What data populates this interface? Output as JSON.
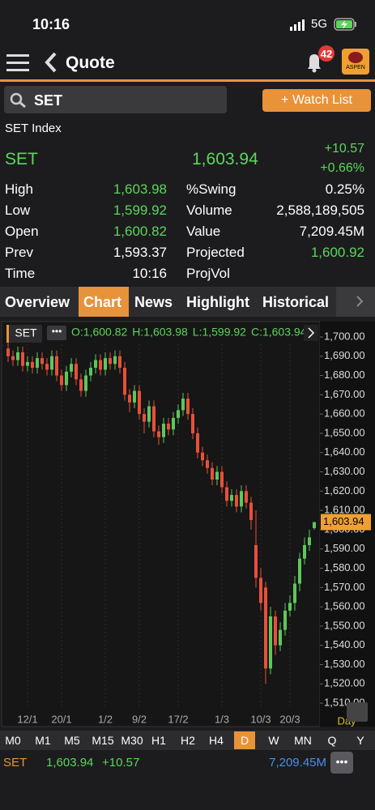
{
  "status_bar": {
    "time": "10:16",
    "network": "5G"
  },
  "nav": {
    "title": "Quote",
    "badge": "42",
    "logo": "ASPEN"
  },
  "search": {
    "query": "SET",
    "button": "+ Watch List"
  },
  "quote": {
    "name": "SET Index",
    "symbol": "SET",
    "last": "1,603.94",
    "change": "+10.57",
    "change_pct": "+0.66%",
    "rows": [
      [
        "High",
        "1,603.98",
        "%Swing",
        "0.25%"
      ],
      [
        "Low",
        "1,599.92",
        "Volume",
        "2,588,189,505"
      ],
      [
        "Open",
        "1,600.82",
        "Value",
        "7,209.45M"
      ],
      [
        "Prev",
        "1,593.37",
        "Projected",
        "1,600.92"
      ],
      [
        "Time",
        "10:16",
        "ProjVol"
      ]
    ]
  },
  "tabs": [
    "Overview",
    "Chart",
    "News",
    "Highlight",
    "Historical"
  ],
  "chart_data": {
    "type": "candlestick",
    "symbol": "SET",
    "ohlc_text": [
      "O:1,600.82",
      "H:1,603.98",
      "L:1,599.92",
      "C:1,603.94"
    ],
    "period_label": "Day",
    "last_label": "1,603.94",
    "up_color": "#5cc85a",
    "down_color": "#e8503a",
    "categories": [
      null,
      null,
      null,
      null,
      "12/1",
      null,
      null,
      null,
      null,
      null,
      null,
      "20/1",
      null,
      null,
      null,
      null,
      null,
      null,
      null,
      null,
      "1/2",
      null,
      null,
      null,
      null,
      null,
      null,
      "9/2",
      null,
      null,
      null,
      null,
      null,
      null,
      null,
      "17/2",
      null,
      null,
      null,
      null,
      null,
      null,
      null,
      null,
      "1/3",
      null,
      null,
      null,
      null,
      null,
      null,
      null,
      "10/3",
      null,
      null,
      null,
      null,
      null,
      "20/3",
      null,
      null,
      null,
      null,
      null
    ],
    "open": [
      1694,
      1690,
      1688,
      1692,
      1685,
      1687,
      1684,
      1689,
      1686,
      1683,
      1690,
      1680,
      1675,
      1682,
      1686,
      1678,
      1672,
      1680,
      1684,
      1688,
      1683,
      1689,
      1686,
      1690,
      1684,
      1670,
      1666,
      1672,
      1660,
      1656,
      1664,
      1651,
      1648,
      1655,
      1652,
      1658,
      1662,
      1668,
      1660,
      1650,
      1640,
      1636,
      1632,
      1626,
      1630,
      1622,
      1615,
      1618,
      1612,
      1620,
      1614,
      1592,
      1575,
      1570,
      1528,
      1555,
      1540,
      1548,
      1558,
      1562,
      1572,
      1585,
      1592,
      1600.82
    ],
    "high": [
      1697,
      1693,
      1695,
      1695,
      1690,
      1690,
      1692,
      1692,
      1689,
      1693,
      1693,
      1683,
      1685,
      1689,
      1689,
      1681,
      1683,
      1687,
      1691,
      1691,
      1692,
      1692,
      1693,
      1693,
      1687,
      1673,
      1675,
      1675,
      1663,
      1667,
      1667,
      1654,
      1658,
      1658,
      1661,
      1665,
      1671,
      1671,
      1663,
      1653,
      1643,
      1639,
      1635,
      1633,
      1633,
      1625,
      1621,
      1621,
      1623,
      1623,
      1617,
      1610,
      1580,
      1573,
      1560,
      1558,
      1552,
      1562,
      1566,
      1576,
      1588,
      1596,
      1600,
      1603.98
    ],
    "low": [
      1687,
      1685,
      1685,
      1682,
      1682,
      1681,
      1681,
      1683,
      1680,
      1680,
      1677,
      1672,
      1672,
      1679,
      1675,
      1669,
      1669,
      1677,
      1681,
      1680,
      1680,
      1683,
      1683,
      1681,
      1667,
      1661,
      1663,
      1657,
      1650,
      1653,
      1648,
      1644,
      1645,
      1649,
      1649,
      1655,
      1659,
      1657,
      1647,
      1637,
      1633,
      1629,
      1623,
      1623,
      1619,
      1612,
      1612,
      1609,
      1609,
      1611,
      1600,
      1570,
      1558,
      1520,
      1525,
      1535,
      1537,
      1545,
      1555,
      1558,
      1568,
      1582,
      1589,
      1599.92
    ],
    "close": [
      1690,
      1688,
      1692,
      1685,
      1687,
      1684,
      1689,
      1686,
      1683,
      1690,
      1680,
      1675,
      1682,
      1686,
      1678,
      1672,
      1680,
      1684,
      1688,
      1683,
      1689,
      1686,
      1690,
      1684,
      1670,
      1666,
      1672,
      1660,
      1656,
      1664,
      1651,
      1648,
      1655,
      1652,
      1658,
      1662,
      1668,
      1660,
      1650,
      1640,
      1636,
      1632,
      1626,
      1630,
      1622,
      1615,
      1618,
      1612,
      1620,
      1614,
      1605,
      1575,
      1562,
      1528,
      1555,
      1540,
      1548,
      1558,
      1562,
      1572,
      1585,
      1592,
      1596,
      1603.94
    ],
    "ylim": [
      1505,
      1706.7
    ],
    "yticks": [
      {
        "value": 1510,
        "label": "1,510.00"
      },
      {
        "value": 1520,
        "label": "1,520.00"
      },
      {
        "value": 1530,
        "label": "1,530.00"
      },
      {
        "value": 1540,
        "label": "1,540.00"
      },
      {
        "value": 1550,
        "label": "1,550.00"
      },
      {
        "value": 1560,
        "label": "1,560.00"
      },
      {
        "value": 1570,
        "label": "1,570.00"
      },
      {
        "value": 1580,
        "label": "1,580.00"
      },
      {
        "value": 1590,
        "label": "1,590.00"
      },
      {
        "value": 1600,
        "label": "1,600.00"
      },
      {
        "value": 1610,
        "label": "1,610.00"
      },
      {
        "value": 1620,
        "label": "1,620.00"
      },
      {
        "value": 1630,
        "label": "1,630.00"
      },
      {
        "value": 1640,
        "label": "1,640.00"
      },
      {
        "value": 1650,
        "label": "1,650.00"
      },
      {
        "value": 1660,
        "label": "1,660.00"
      },
      {
        "value": 1670,
        "label": "1,670.00"
      },
      {
        "value": 1680,
        "label": "1,680.00"
      },
      {
        "value": 1690,
        "label": "1,690.00"
      },
      {
        "value": 1700,
        "label": "1,700.00"
      }
    ]
  },
  "timeframes": [
    "M0",
    "M1",
    "M5",
    "M15",
    "M30",
    "H1",
    "H2",
    "H4",
    "D",
    "W",
    "MN",
    "Q",
    "Y"
  ],
  "footer": {
    "symbol": "SET",
    "last": "1,603.94",
    "change": "+10.57",
    "value": "7,209.45M"
  }
}
